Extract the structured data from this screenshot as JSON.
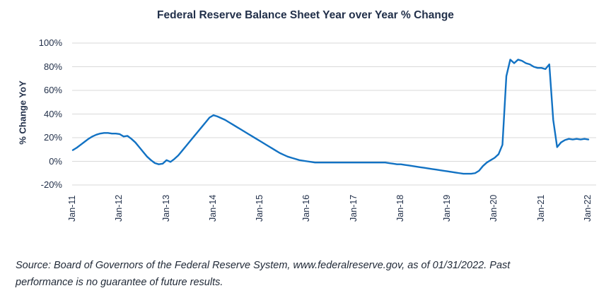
{
  "title": "Federal Reserve Balance Sheet Year over Year % Change",
  "y_axis": {
    "label": "% Change YoY",
    "tick_labels": [
      "100%",
      "80%",
      "60%",
      "40%",
      "20%",
      "0%",
      "-20%"
    ],
    "tick_values": [
      100,
      80,
      60,
      40,
      20,
      0,
      -20
    ]
  },
  "x_axis": {
    "tick_labels": [
      "Jan-11",
      "Jan-12",
      "Jan-13",
      "Jan-14",
      "Jan-15",
      "Jan-16",
      "Jan-17",
      "Jan-18",
      "Jan-19",
      "Jan-20",
      "Jan-21",
      "Jan-22"
    ]
  },
  "source": {
    "lines": [
      "Source: Board of Governors of the Federal Reserve System, www.federalreserve.gov, as of 01/31/2022. Past",
      "performance is no guarantee of future results."
    ]
  },
  "colors": {
    "line": "#1272c3",
    "grid": "#d9d9d9",
    "text": "#22304a"
  },
  "chart_data": {
    "type": "line",
    "title": "Federal Reserve Balance Sheet Year over Year % Change",
    "ylabel": "% Change YoY",
    "xlabel": "",
    "ylim": [
      -20,
      100
    ],
    "grid": "horizontal",
    "legend": "none",
    "frequency": "monthly",
    "x_start": "2011-01",
    "x_end": "2022-01",
    "x_tick_labels": [
      "Jan-11",
      "Jan-12",
      "Jan-13",
      "Jan-14",
      "Jan-15",
      "Jan-16",
      "Jan-17",
      "Jan-18",
      "Jan-19",
      "Jan-20",
      "Jan-21",
      "Jan-22"
    ],
    "series": [
      {
        "name": "yoy_pct_change",
        "values": [
          9.5,
          11.5,
          14,
          16.5,
          19,
          21,
          22.5,
          23.5,
          24,
          24,
          23.5,
          23.5,
          23,
          21,
          21.5,
          19,
          16,
          12,
          8,
          4,
          1,
          -1.5,
          -2.5,
          -2,
          1,
          -0.5,
          2,
          5,
          9,
          13,
          17,
          21,
          25,
          29,
          33,
          37,
          39,
          38,
          36.5,
          35,
          33,
          31,
          29,
          27,
          25,
          23,
          21,
          19,
          17,
          15,
          13,
          11,
          9,
          7,
          5.5,
          4,
          3,
          2,
          1,
          0.5,
          0,
          -0.5,
          -1,
          -1,
          -1,
          -1,
          -1,
          -1,
          -1,
          -1,
          -1,
          -1,
          -1,
          -1,
          -1,
          -1,
          -1,
          -1,
          -1,
          -1,
          -1,
          -1.5,
          -2,
          -2.5,
          -2.5,
          -3,
          -3.5,
          -4,
          -4.5,
          -5,
          -5.5,
          -6,
          -6.5,
          -7,
          -7.5,
          -8,
          -8.5,
          -9,
          -9.5,
          -10,
          -10.5,
          -10.5,
          -10.5,
          -10,
          -8,
          -4,
          -1,
          1,
          3,
          6,
          14,
          72,
          86,
          83,
          86,
          85,
          83,
          82,
          80,
          79,
          79,
          78,
          82,
          35,
          12,
          16,
          18,
          19,
          18.5,
          19,
          18.5,
          19,
          18.5
        ]
      }
    ]
  }
}
